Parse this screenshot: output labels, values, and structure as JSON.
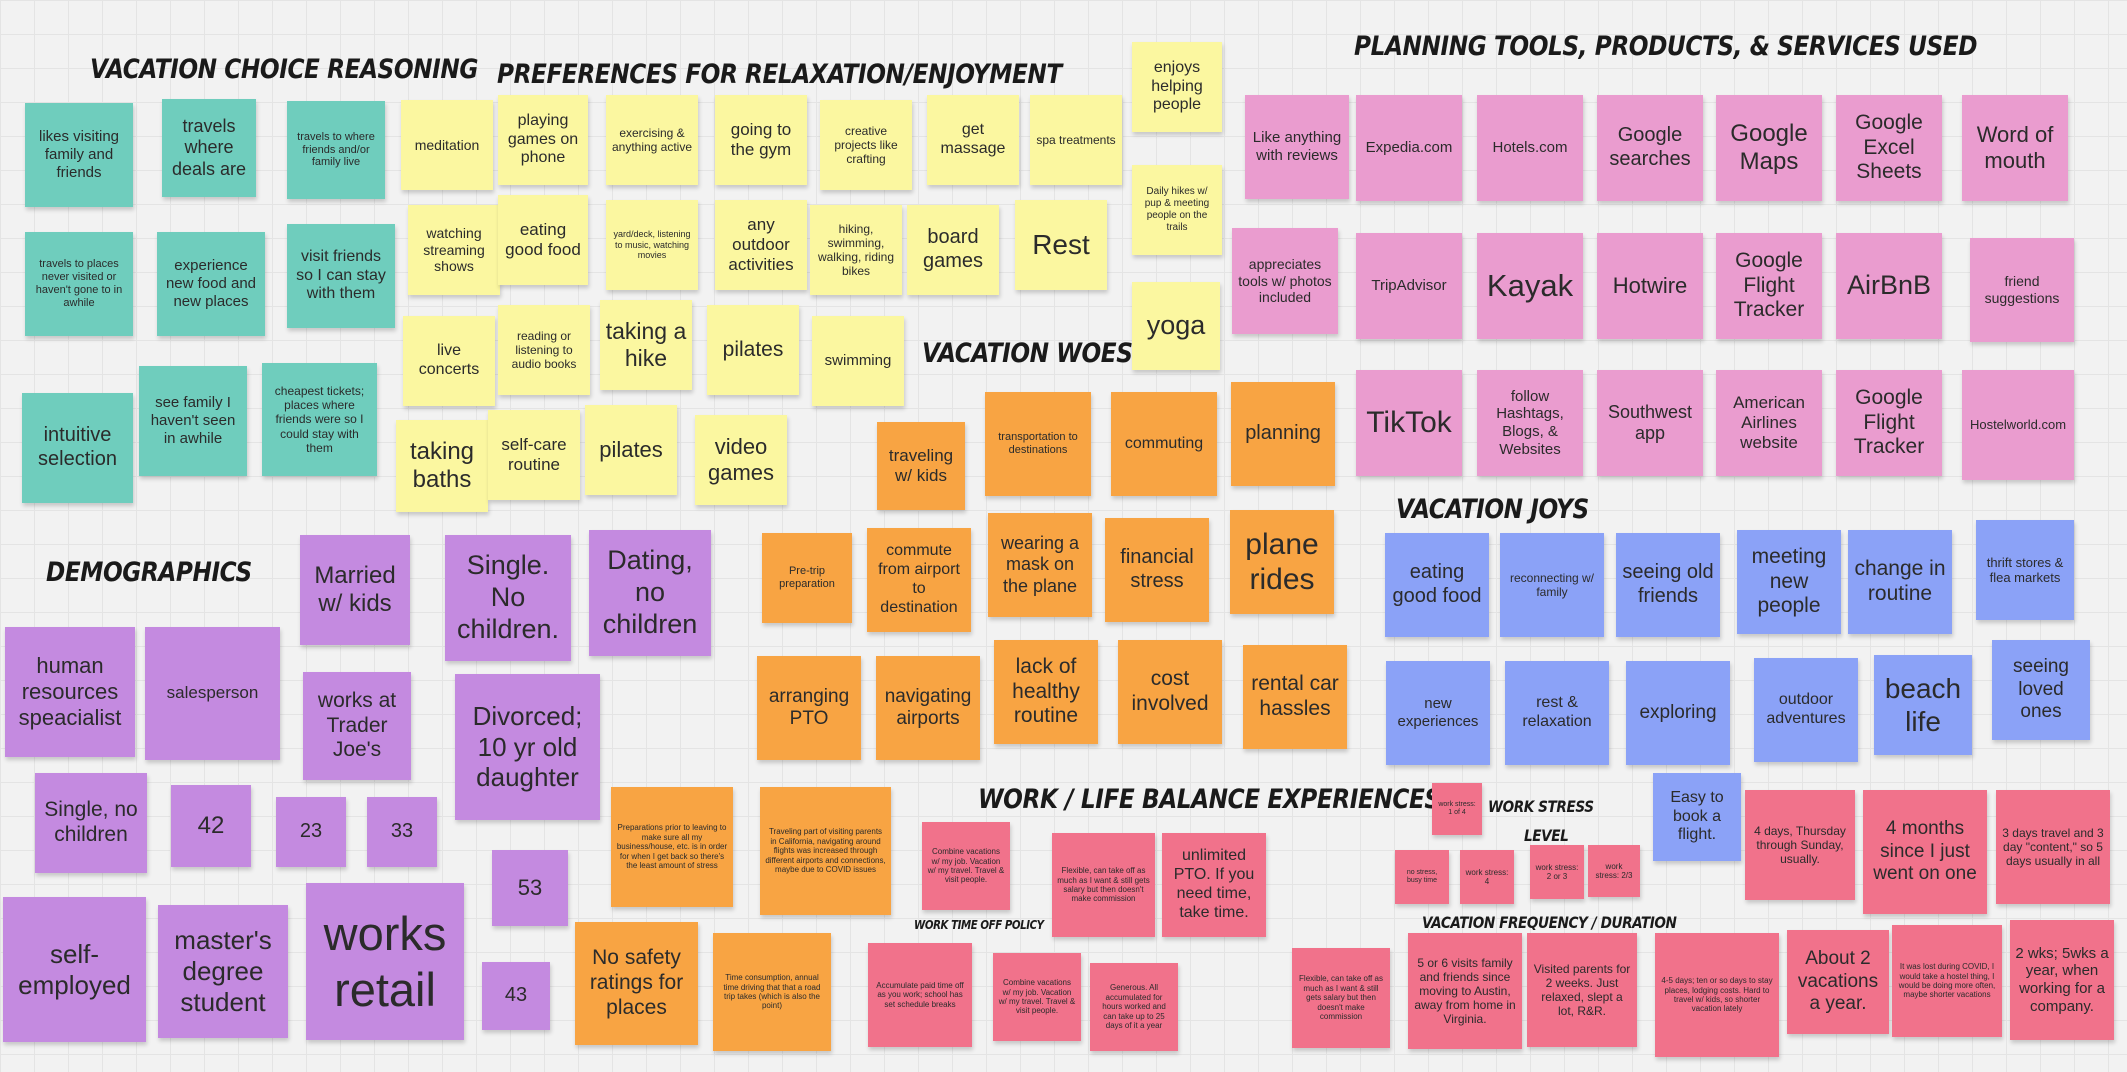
{
  "colors": {
    "teal": "#6fcdbd",
    "yellow": "#fbf7a0",
    "pink": "#ea9ccf",
    "orange": "#f8a443",
    "purple": "#c48ae0",
    "blue": "#8ba2f7",
    "red": "#f1728b"
  },
  "headings": {
    "vacation_choice": "VACATION CHOICE REASONING",
    "preferences": "PREFERENCES FOR RELAXATION/ENJOYMENT",
    "planning_tools": "PLANNING TOOLS, PRODUCTS, & SERVICES USED",
    "vacation_woes": "VACATION WOES",
    "demographics": "DEMOGRAPHICS",
    "vacation_joys": "VACATION JOYS",
    "work_life": "WORK / LIFE BALANCE EXPERIENCES",
    "work_stress": "WORK STRESS",
    "level": "LEVEL",
    "time_off_policy": "WORK TIME OFF POLICY",
    "frequency": "VACATION FREQUENCY / DURATION"
  },
  "notes": {
    "teal": [
      "likes visiting family and friends",
      "travels where deals are",
      "travels to where friends and/or family live",
      "travels to places never visited or haven't gone to in awhile",
      "experience new food and new places",
      "visit friends so I can stay with them",
      "intuitive selection",
      "see family I haven't seen in awhile",
      "cheapest tickets; places where friends were so I could stay with them"
    ],
    "yellow": [
      "meditation",
      "playing games on phone",
      "exercising & anything active",
      "going to the gym",
      "creative projects like crafting",
      "get massage",
      "spa treatments",
      "enjoys helping people",
      "watching streaming shows",
      "eating good food",
      "yard/deck, listening to music, watching movies",
      "any outdoor activities",
      "hiking, swimming, walking, riding bikes",
      "board games",
      "Rest",
      "Daily hikes w/ pup & meeting people on the trails",
      "live concerts",
      "reading or listening to audio books",
      "taking a hike",
      "pilates",
      "swimming",
      "yoga",
      "taking baths",
      "self-care routine",
      "pilates",
      "video games"
    ],
    "pink": [
      "Like anything with reviews",
      "Expedia.com",
      "Hotels.com",
      "Google searches",
      "Google Maps",
      "Google Excel Sheets",
      "Word of mouth",
      "appreciates tools w/ photos included",
      "TripAdvisor",
      "Kayak",
      "Hotwire",
      "Google Flight Tracker",
      "AirBnB",
      "friend suggestions",
      "TikTok",
      "follow Hashtags, Blogs, & Websites",
      "Southwest app",
      "American Airlines website",
      "Google Flight Tracker",
      "Hostelworld.com"
    ],
    "orange": [
      "traveling w/ kids",
      "transportation to destinations",
      "commuting",
      "planning",
      "Pre-trip preparation",
      "commute from airport to destination",
      "wearing a mask on the plane",
      "financial stress",
      "plane rides",
      "arranging PTO",
      "navigating airports",
      "lack of healthy routine",
      "cost involved",
      "rental car hassles",
      "Preparations prior to leaving to make sure all my business/house, etc. is in order for when I get back so there's the least amount of stress",
      "Traveling part of visiting parents in California, navigating around flights was increased through different airports and connections, maybe due to COVID issues",
      "No safety ratings for places",
      "Time consumption, annual time driving that that a road trip takes (which is also the point)"
    ],
    "purple": [
      "Married w/ kids",
      "Single. No children.",
      "Dating, no children",
      "human resources speacialist",
      "salesperson",
      "works at Trader Joe's",
      "Divorced; 10 yr old daughter",
      "Single, no children",
      "42",
      "23",
      "33",
      "53",
      "self-employed",
      "master's degree student",
      "works retail",
      "43"
    ],
    "blue": [
      "eating good food",
      "reconnecting w/ family",
      "seeing old friends",
      "meeting new people",
      "change in routine",
      "thrift stores & flea markets",
      "new experiences",
      "rest & relaxation",
      "exploring",
      "outdoor adventures",
      "beach life",
      "seeing loved ones",
      "Easy to book a flight."
    ],
    "red": [
      "Combine vacations w/ my job. Vacation w/ my travel. Travel & visit people.",
      "Flexible, can take off as much as I want & still gets salary but then doesn't make commission",
      "unlimited PTO. If you need time, take time.",
      "Accumulate paid time off as you work; school has set schedule breaks",
      "Combine vacations w/ my job. Vacation w/ my travel. Travel & visit people.",
      "Generous. All accumulated for hours worked and can take up to 25 days of it a year",
      "work stress: 1 of 4",
      "no stress, busy time",
      "work stress: 4",
      "work stress: 2 or 3",
      "work stress: 2/3",
      "4 days, Thursday through Sunday, usually.",
      "4 months since I just went on one",
      "3 days travel and 3 day \"content,\" so 5 days usually in all",
      "Flexible, can take off as much as I want & still gets salary but then doesn't make commission",
      "5 or 6 visits family and friends since moving to Austin, away from home in Virginia.",
      "Visited parents for 2 weeks. Just relaxed, slept a lot, R&R.",
      "4-5 days; ten or so days to stay places, lodging costs. Hard to travel w/ kids, so shorter vacation lately",
      "About 2 vacations a year.",
      "It was lost during COVID, I would take a hostel thing, I would be doing more often, maybe shorter vacations",
      "2 wks; 5wks a year, when working for a company."
    ]
  }
}
